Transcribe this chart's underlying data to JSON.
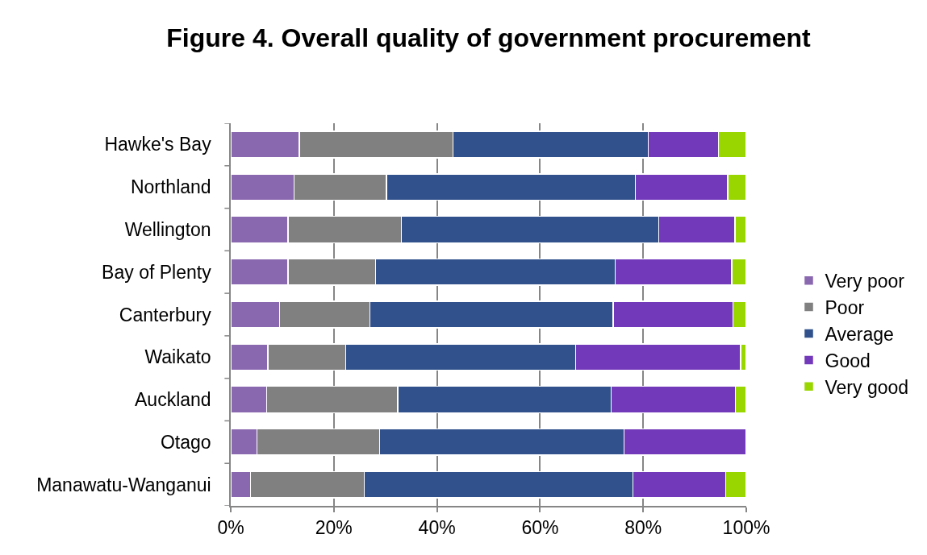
{
  "chart_data": {
    "type": "bar",
    "title": "Figure 4. Overall quality of government procurement",
    "orientation": "horizontal",
    "stacked": true,
    "categories": [
      "Hawke's Bay",
      "Northland",
      "Wellington",
      "Bay of Plenty",
      "Canterbury",
      "Waikato",
      "Auckland",
      "Otago",
      "Manawatu-Wanganui"
    ],
    "series": [
      {
        "name": "Very poor",
        "color": "#8a68b0",
        "values": [
          13.3,
          12.3,
          11.1,
          11.1,
          9.5,
          7.2,
          7.0,
          5.1,
          3.8
        ]
      },
      {
        "name": "Poor",
        "color": "#808080",
        "values": [
          29.8,
          17.9,
          22.0,
          17.0,
          17.5,
          15.1,
          25.4,
          23.8,
          22.1
        ]
      },
      {
        "name": "Average",
        "color": "#30518c",
        "values": [
          37.9,
          48.3,
          49.9,
          46.5,
          47.2,
          44.6,
          41.4,
          47.4,
          52.1
        ]
      },
      {
        "name": "Good",
        "color": "#7339bb",
        "values": [
          13.6,
          17.9,
          14.8,
          22.6,
          23.2,
          32.0,
          24.1,
          23.7,
          18.0
        ]
      },
      {
        "name": "Very good",
        "color": "#99d600",
        "values": [
          5.4,
          3.6,
          2.2,
          2.8,
          2.6,
          1.1,
          2.1,
          0,
          4.0
        ]
      }
    ],
    "xlim": [
      0,
      100
    ],
    "xticks": [
      {
        "value": 0,
        "label": "0%"
      },
      {
        "value": 20,
        "label": "20%"
      },
      {
        "value": 40,
        "label": "40%"
      },
      {
        "value": 60,
        "label": "60%"
      },
      {
        "value": 80,
        "label": "80%"
      },
      {
        "value": 100,
        "label": "100%"
      }
    ],
    "grid": "x",
    "legend": "right"
  }
}
